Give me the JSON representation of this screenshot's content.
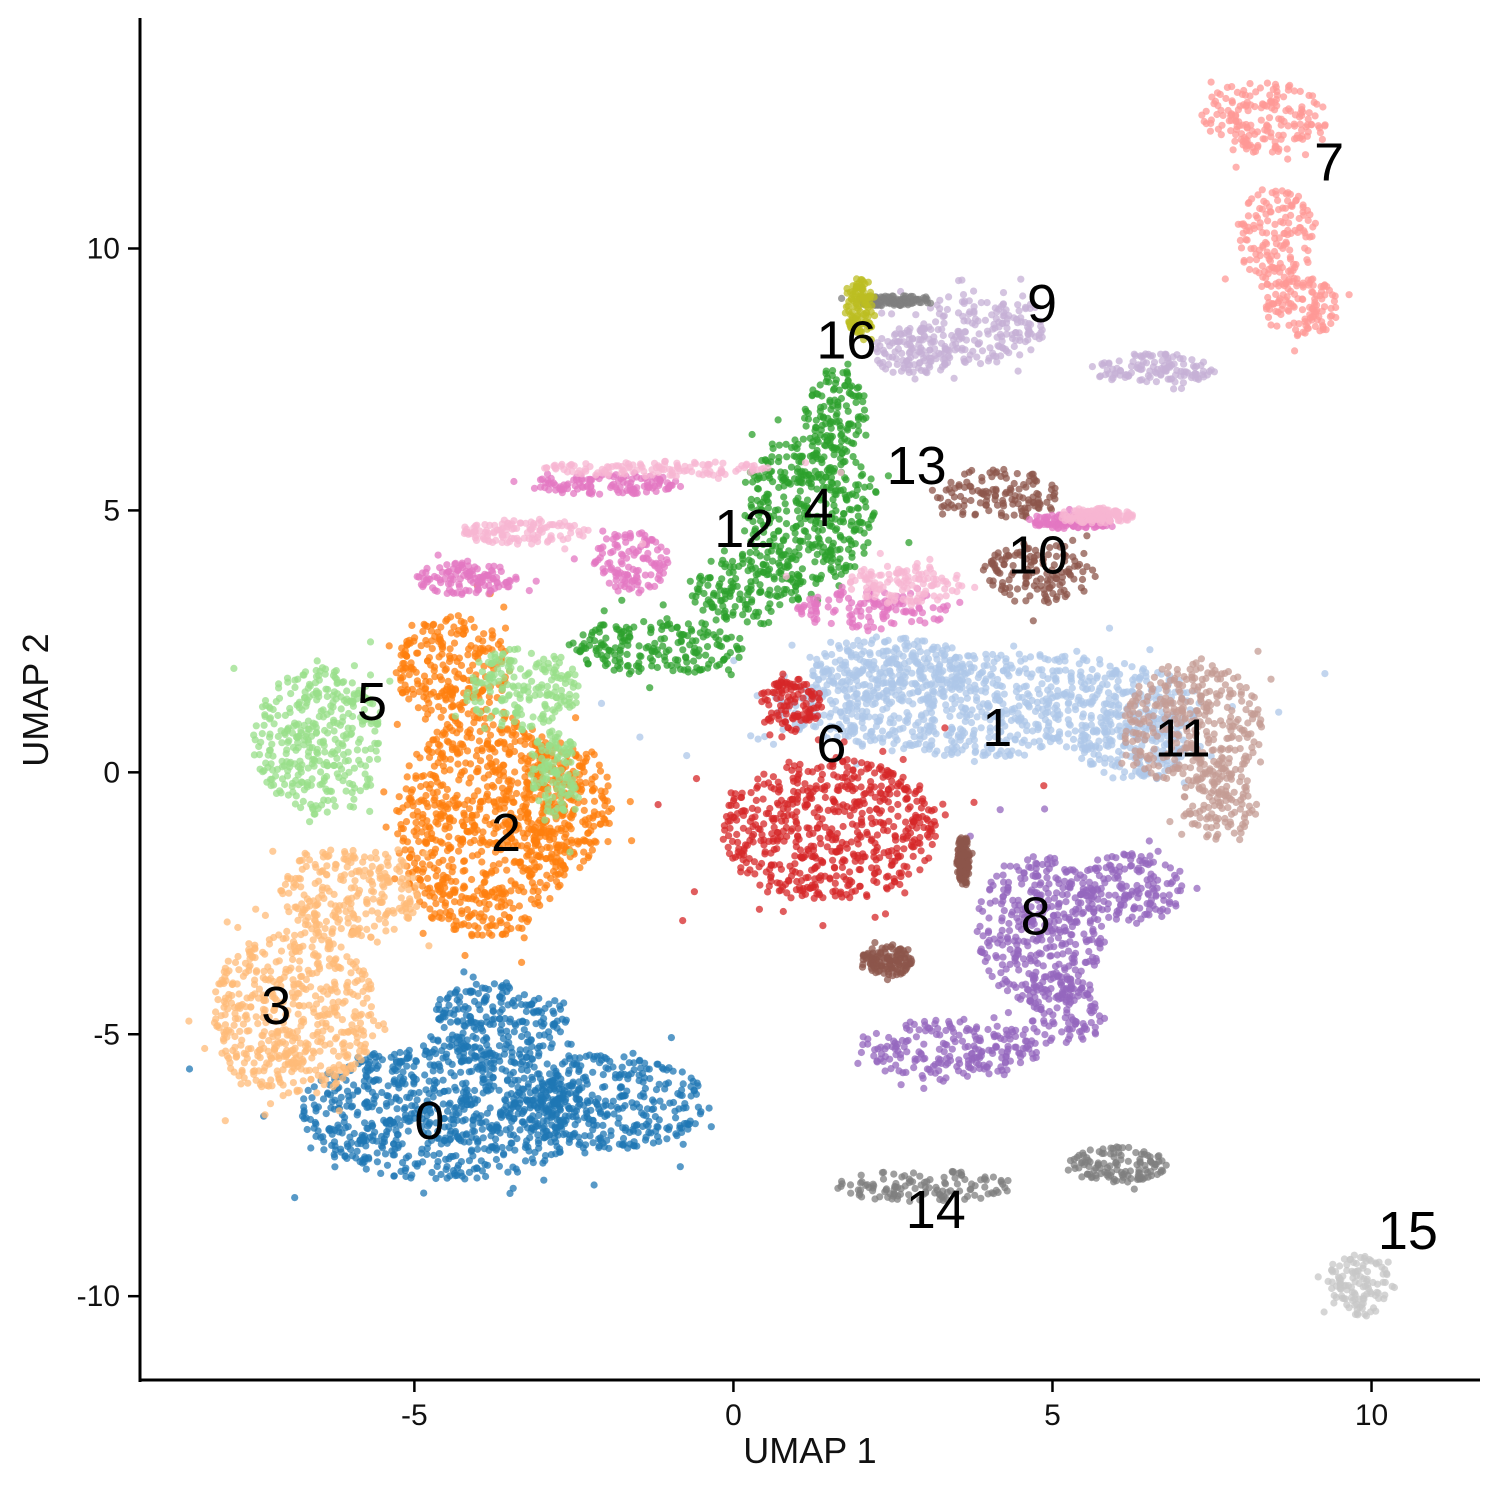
{
  "chart_data": {
    "type": "scatter",
    "title": "",
    "xlabel": "UMAP 1",
    "ylabel": "UMAP 2",
    "xlim": [
      -9.3,
      11.7
    ],
    "ylim": [
      -11.6,
      14.4
    ],
    "xticks": [
      -5,
      0,
      5,
      10
    ],
    "yticks": [
      -10,
      -5,
      0,
      5,
      10
    ],
    "xtick_labels": [
      "-5",
      "0",
      "5",
      "10"
    ],
    "ytick_labels": [
      "-10",
      "-5",
      "0",
      "5",
      "10"
    ],
    "grid": false,
    "legend": "none",
    "clusters": [
      {
        "label": "0",
        "color": "#1f77b4",
        "label_pos": [
          -5.0,
          -7.0
        ],
        "blobs": [
          [
            -4.5,
            -6.5,
            2.3,
            1.3
          ],
          [
            -2.0,
            -6.3,
            1.6,
            0.9
          ],
          [
            -3.7,
            -4.8,
            1.1,
            0.8
          ]
        ]
      },
      {
        "label": "1",
        "color": "#aec7e8",
        "label_pos": [
          3.9,
          0.5
        ],
        "blobs": [
          [
            4.0,
            1.3,
            3.4,
            1.0
          ],
          [
            6.3,
            0.5,
            0.9,
            0.7
          ],
          [
            2.5,
            2.0,
            1.3,
            0.6
          ]
        ]
      },
      {
        "label": "2",
        "color": "#ff7f0e",
        "label_pos": [
          -3.8,
          -1.5
        ],
        "blobs": [
          [
            -3.9,
            -1.0,
            1.4,
            2.2
          ],
          [
            -4.4,
            2.0,
            0.9,
            1.0
          ],
          [
            -2.6,
            -0.6,
            0.7,
            1.2
          ]
        ]
      },
      {
        "label": "3",
        "color": "#ffbb78",
        "label_pos": [
          -7.4,
          -4.8
        ],
        "blobs": [
          [
            -6.9,
            -4.6,
            1.3,
            1.6
          ],
          [
            -6.0,
            -2.3,
            1.1,
            0.9
          ]
        ]
      },
      {
        "label": "4",
        "color": "#2ca02c",
        "label_pos": [
          1.1,
          4.7
        ],
        "blobs": [
          [
            1.2,
            5.0,
            1.1,
            1.4
          ],
          [
            1.6,
            6.9,
            0.5,
            0.8
          ],
          [
            -1.2,
            2.4,
            1.4,
            0.55
          ],
          [
            0.2,
            3.5,
            0.9,
            0.7
          ]
        ]
      },
      {
        "label": "5",
        "color": "#98df8a",
        "label_pos": [
          -5.9,
          1.0
        ],
        "blobs": [
          [
            -6.5,
            0.6,
            1.0,
            1.4
          ],
          [
            -3.3,
            1.6,
            0.9,
            0.8
          ],
          [
            -2.8,
            0.0,
            0.4,
            0.8
          ]
        ]
      },
      {
        "label": "6",
        "color": "#d62728",
        "label_pos": [
          1.3,
          0.2
        ],
        "blobs": [
          [
            1.5,
            -1.1,
            1.7,
            1.4
          ],
          [
            0.9,
            1.3,
            0.5,
            0.5
          ]
        ]
      },
      {
        "label": "7",
        "color": "#ff9896",
        "label_pos": [
          9.1,
          11.3
        ],
        "blobs": [
          [
            8.3,
            12.5,
            1.0,
            0.7
          ],
          [
            8.5,
            10.2,
            0.6,
            1.0
          ],
          [
            8.9,
            8.9,
            0.6,
            0.6
          ]
        ]
      },
      {
        "label": "8",
        "color": "#9467bd",
        "label_pos": [
          4.5,
          -3.1
        ],
        "blobs": [
          [
            4.8,
            -3.0,
            1.0,
            1.4
          ],
          [
            3.4,
            -5.3,
            1.4,
            0.6
          ],
          [
            6.2,
            -2.2,
            0.9,
            0.7
          ],
          [
            5.2,
            -4.5,
            0.6,
            0.7
          ]
        ]
      },
      {
        "label": "9",
        "color": "#c5b0d5",
        "label_pos": [
          4.6,
          8.6
        ],
        "blobs": [
          [
            3.9,
            8.5,
            1.0,
            0.7
          ],
          [
            6.6,
            7.7,
            1.0,
            0.3
          ],
          [
            2.8,
            8.0,
            0.6,
            0.5
          ]
        ]
      },
      {
        "label": "10",
        "color": "#8c564b",
        "label_pos": [
          4.3,
          3.8
        ],
        "blobs": [
          [
            4.1,
            5.3,
            1.0,
            0.5
          ],
          [
            4.8,
            3.8,
            0.9,
            0.6
          ],
          [
            3.6,
            -1.7,
            0.1,
            0.5
          ],
          [
            2.4,
            -3.6,
            0.4,
            0.3
          ]
        ]
      },
      {
        "label": "11",
        "color": "#c49c94",
        "label_pos": [
          6.6,
          0.3
        ],
        "blobs": [
          [
            7.2,
            0.9,
            1.1,
            1.2
          ],
          [
            7.6,
            -0.6,
            0.6,
            0.7
          ]
        ]
      },
      {
        "label": "12",
        "color": "#e377c2",
        "label_pos": [
          -0.3,
          4.3
        ],
        "blobs": [
          [
            -1.6,
            4.0,
            0.6,
            0.6
          ],
          [
            2.2,
            3.1,
            1.2,
            0.4
          ],
          [
            -2.0,
            5.5,
            1.2,
            0.2
          ],
          [
            -4.2,
            3.7,
            0.8,
            0.3
          ],
          [
            5.3,
            4.8,
            0.7,
            0.15
          ]
        ]
      },
      {
        "label": "13",
        "color": "#f7b6d2",
        "label_pos": [
          2.4,
          5.5
        ],
        "blobs": [
          [
            2.7,
            3.6,
            0.9,
            0.4
          ],
          [
            -1.2,
            5.8,
            1.8,
            0.15
          ],
          [
            -3.3,
            4.6,
            1.0,
            0.25
          ],
          [
            5.7,
            4.9,
            0.6,
            0.15
          ]
        ]
      },
      {
        "label": "14",
        "color": "#7f7f7f",
        "label_pos": [
          2.7,
          -8.7
        ],
        "blobs": [
          [
            3.0,
            -7.9,
            1.4,
            0.3
          ],
          [
            6.0,
            -7.5,
            0.8,
            0.35
          ],
          [
            2.5,
            9.0,
            0.6,
            0.1
          ]
        ]
      },
      {
        "label": "15",
        "color": "#c7c7c7",
        "label_pos": [
          10.1,
          -9.1
        ],
        "blobs": [
          [
            9.8,
            -9.8,
            0.5,
            0.6
          ]
        ]
      },
      {
        "label": "16",
        "color": "#bcbd22",
        "label_pos": [
          1.3,
          7.9
        ],
        "blobs": [
          [
            2.0,
            8.9,
            0.25,
            0.55
          ]
        ]
      }
    ]
  }
}
